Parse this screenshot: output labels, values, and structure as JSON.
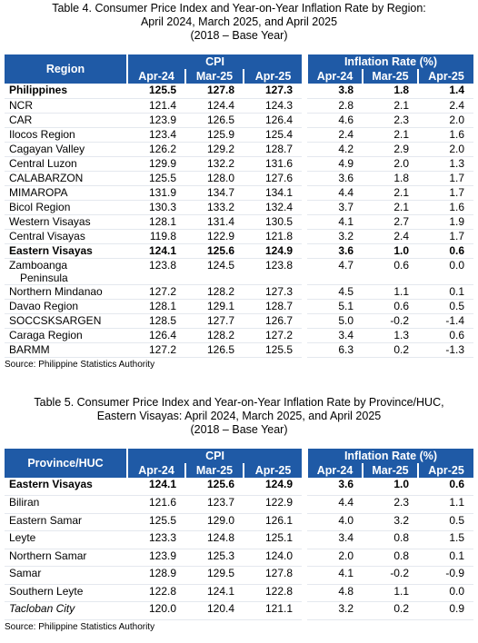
{
  "tables": [
    {
      "title": [
        "Table 4. Consumer Price Index and Year-on-Year Inflation Rate by Region:",
        "April 2024, March 2025, and April 2025",
        "(2018 – Base Year)"
      ],
      "header": {
        "first": "Region",
        "cpi": "CPI",
        "inflation": "Inflation Rate (%)",
        "cpi_periods": [
          "Apr-24",
          "Mar-25",
          "Apr-25"
        ],
        "inflation_periods": [
          "Apr-24",
          "Mar-25",
          "Apr-25"
        ]
      },
      "rows": [
        {
          "label": "Philippines",
          "cpi": [
            "125.5",
            "127.8",
            "127.3"
          ],
          "inflation": [
            "3.8",
            "1.8",
            "1.4"
          ],
          "bold": true
        },
        {
          "label": "NCR",
          "cpi": [
            "121.4",
            "124.4",
            "124.3"
          ],
          "inflation": [
            "2.8",
            "2.1",
            "2.4"
          ]
        },
        {
          "label": "CAR",
          "cpi": [
            "123.9",
            "126.5",
            "126.4"
          ],
          "inflation": [
            "4.6",
            "2.3",
            "2.0"
          ]
        },
        {
          "label": "Ilocos Region",
          "cpi": [
            "123.4",
            "125.9",
            "125.4"
          ],
          "inflation": [
            "2.4",
            "2.1",
            "1.6"
          ]
        },
        {
          "label": "Cagayan Valley",
          "cpi": [
            "126.2",
            "129.2",
            "128.7"
          ],
          "inflation": [
            "4.2",
            "2.9",
            "2.0"
          ]
        },
        {
          "label": "Central Luzon",
          "cpi": [
            "129.9",
            "132.2",
            "131.6"
          ],
          "inflation": [
            "4.9",
            "2.0",
            "1.3"
          ]
        },
        {
          "label": "CALABARZON",
          "cpi": [
            "125.5",
            "128.0",
            "127.6"
          ],
          "inflation": [
            "3.6",
            "1.8",
            "1.7"
          ]
        },
        {
          "label": "MIMAROPA",
          "cpi": [
            "131.9",
            "134.7",
            "134.1"
          ],
          "inflation": [
            "4.4",
            "2.1",
            "1.7"
          ]
        },
        {
          "label": "Bicol Region",
          "cpi": [
            "130.3",
            "133.2",
            "132.4"
          ],
          "inflation": [
            "3.7",
            "2.1",
            "1.6"
          ]
        },
        {
          "label": "Western Visayas",
          "cpi": [
            "128.1",
            "131.4",
            "130.5"
          ],
          "inflation": [
            "4.1",
            "2.7",
            "1.9"
          ]
        },
        {
          "label": "Central Visayas",
          "cpi": [
            "119.8",
            "122.9",
            "121.8"
          ],
          "inflation": [
            "3.2",
            "2.4",
            "1.7"
          ]
        },
        {
          "label": "Eastern Visayas",
          "cpi": [
            "124.1",
            "125.6",
            "124.9"
          ],
          "inflation": [
            "3.6",
            "1.0",
            "0.6"
          ],
          "bold": true
        },
        {
          "label": "Zamboanga Peninsula",
          "cpi": [
            "123.8",
            "124.5",
            "123.8"
          ],
          "inflation": [
            "4.7",
            "0.6",
            "0.0"
          ],
          "wrap": true
        },
        {
          "label": "Northern Mindanao",
          "cpi": [
            "127.2",
            "128.2",
            "127.3"
          ],
          "inflation": [
            "4.5",
            "1.1",
            "0.1"
          ]
        },
        {
          "label": "Davao Region",
          "cpi": [
            "128.1",
            "129.1",
            "128.7"
          ],
          "inflation": [
            "5.1",
            "0.6",
            "0.5"
          ]
        },
        {
          "label": "SOCCSKSARGEN",
          "cpi": [
            "128.5",
            "127.7",
            "126.7"
          ],
          "inflation": [
            "5.0",
            "-0.2",
            "-1.4"
          ]
        },
        {
          "label": "Caraga Region",
          "cpi": [
            "126.4",
            "128.2",
            "127.2"
          ],
          "inflation": [
            "3.4",
            "1.3",
            "0.6"
          ]
        },
        {
          "label": "BARMM",
          "cpi": [
            "127.2",
            "126.5",
            "125.5"
          ],
          "inflation": [
            "6.3",
            "0.2",
            "-1.3"
          ]
        }
      ],
      "source": "Source: Philippine Statistics Authority"
    },
    {
      "title": [
        "Table 5. Consumer Price Index and Year-on-Year Inflation Rate by Province/HUC,",
        "Eastern Visayas: April 2024, March 2025, and April 2025",
        "(2018 – Base Year)"
      ],
      "header": {
        "first": "Province/HUC",
        "cpi": "CPI",
        "inflation": "Inflation Rate (%)",
        "cpi_periods": [
          "Apr-24",
          "Mar-25",
          "Apr-25"
        ],
        "inflation_periods": [
          "Apr-24",
          "Mar-25",
          "Apr-25"
        ]
      },
      "rows": [
        {
          "label": "Eastern Visayas",
          "cpi": [
            "124.1",
            "125.6",
            "124.9"
          ],
          "inflation": [
            "3.6",
            "1.0",
            "0.6"
          ],
          "bold": true
        },
        {
          "label": "Biliran",
          "cpi": [
            "121.6",
            "123.7",
            "122.9"
          ],
          "inflation": [
            "4.4",
            "2.3",
            "1.1"
          ]
        },
        {
          "label": "Eastern Samar",
          "cpi": [
            "125.5",
            "129.0",
            "126.1"
          ],
          "inflation": [
            "4.0",
            "3.2",
            "0.5"
          ]
        },
        {
          "label": "Leyte",
          "cpi": [
            "123.3",
            "124.8",
            "125.1"
          ],
          "inflation": [
            "3.4",
            "0.8",
            "1.5"
          ]
        },
        {
          "label": "Northern Samar",
          "cpi": [
            "123.9",
            "125.3",
            "124.0"
          ],
          "inflation": [
            "2.0",
            "0.8",
            "0.1"
          ]
        },
        {
          "label": "Samar",
          "cpi": [
            "128.9",
            "129.5",
            "127.8"
          ],
          "inflation": [
            "4.1",
            "-0.2",
            "-0.9"
          ]
        },
        {
          "label": "Southern Leyte",
          "cpi": [
            "122.8",
            "124.1",
            "122.8"
          ],
          "inflation": [
            "4.8",
            "1.1",
            "0.0"
          ]
        },
        {
          "label": "Tacloban City",
          "cpi": [
            "120.0",
            "120.4",
            "121.1"
          ],
          "inflation": [
            "3.2",
            "0.2",
            "0.9"
          ],
          "italic": true
        }
      ],
      "source": "Source: Philippine Statistics Authority"
    }
  ]
}
